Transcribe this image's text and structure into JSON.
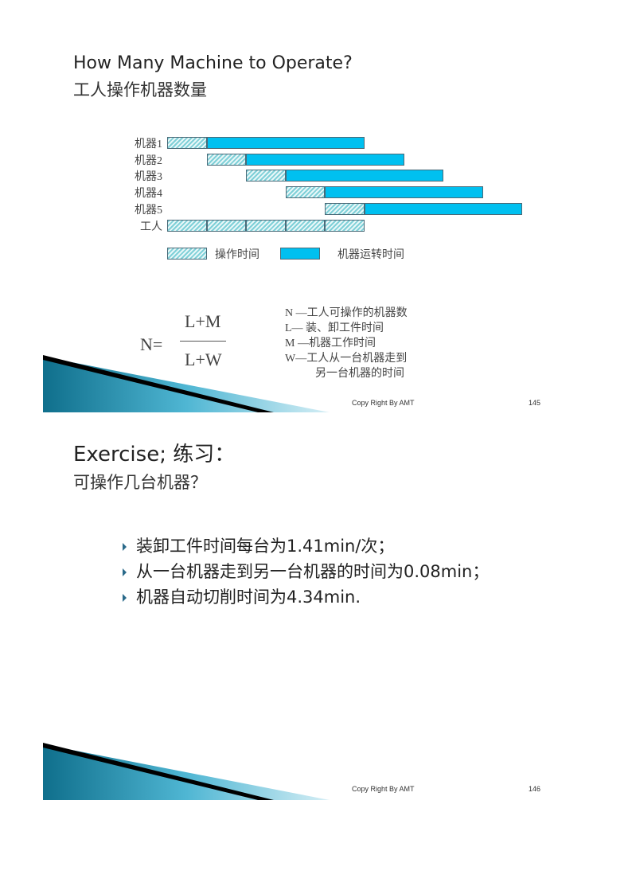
{
  "slide1": {
    "title": "How Many Machine to Operate?",
    "subtitle": "工人操作机器数量",
    "chart_data": {
      "type": "gantt",
      "rows": [
        {
          "label": "机器1",
          "segments": [
            {
              "kind": "操作时间",
              "start": 0,
              "end": 1
            },
            {
              "kind": "机器运转时间",
              "start": 1,
              "end": 5
            }
          ]
        },
        {
          "label": "机器2",
          "segments": [
            {
              "kind": "操作时间",
              "start": 1,
              "end": 2
            },
            {
              "kind": "机器运转时间",
              "start": 2,
              "end": 6
            }
          ]
        },
        {
          "label": "机器3",
          "segments": [
            {
              "kind": "操作时间",
              "start": 2,
              "end": 3
            },
            {
              "kind": "机器运转时间",
              "start": 3,
              "end": 7
            }
          ]
        },
        {
          "label": "机器4",
          "segments": [
            {
              "kind": "操作时间",
              "start": 3,
              "end": 4
            },
            {
              "kind": "机器运转时间",
              "start": 4,
              "end": 8
            }
          ]
        },
        {
          "label": "机器5",
          "segments": [
            {
              "kind": "操作时间",
              "start": 4,
              "end": 5
            },
            {
              "kind": "机器运转时间",
              "start": 5,
              "end": 9
            }
          ]
        },
        {
          "label": "工人",
          "segments": [
            {
              "kind": "操作时间",
              "start": 0,
              "end": 1
            },
            {
              "kind": "操作时间",
              "start": 1,
              "end": 2
            },
            {
              "kind": "操作时间",
              "start": 2,
              "end": 3
            },
            {
              "kind": "操作时间",
              "start": 3,
              "end": 4
            },
            {
              "kind": "操作时间",
              "start": 4,
              "end": 5
            }
          ]
        }
      ],
      "legend": [
        {
          "label": "操作时间",
          "style": "hatched",
          "color": "#7fd0d8"
        },
        {
          "label": "机器运转时间",
          "style": "solid",
          "color": "#00c0f0"
        }
      ]
    },
    "formula": {
      "lhs": "N=",
      "numerator": "L+M",
      "denominator": "L+W"
    },
    "definitions": [
      "N —工人可操作的机器数",
      "L— 装、卸工件时间",
      "M —机器工作时间",
      "W—工人从一台机器走到",
      "另一台机器的时间"
    ],
    "copyright": "Copy Right By AMT",
    "page": "145"
  },
  "slide2": {
    "title": "Exercise; 练习：",
    "subtitle": "可操作几台机器？",
    "bullets": [
      "装卸工件时间每台为1.41min/次；",
      "从一台机器走到另一台机器的时间为0.08min；",
      "机器自动切削时间为4.34min."
    ],
    "copyright": "Copy Right By AMT",
    "page": "146"
  }
}
